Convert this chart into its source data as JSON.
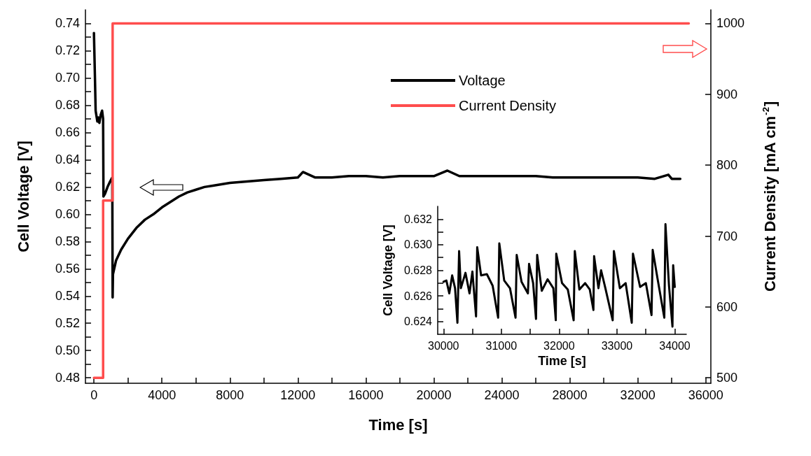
{
  "chart_data": [
    {
      "type": "line",
      "xlabel": "Time [s]",
      "ylabel": "Cell Voltage [V]",
      "y2label": "Current Density [mA cm$^{-2}$]",
      "xlim": [
        -500,
        36300
      ],
      "xticks": [
        0,
        {
          "value": 2000,
          "label": null
        },
        4000,
        {
          "value": 6000,
          "label": null
        },
        8000,
        {
          "value": 10000,
          "label": null
        },
        12000,
        {
          "value": 14000,
          "label": null
        },
        16000,
        {
          "value": 18000,
          "label": null
        },
        20000,
        {
          "value": 22000,
          "label": null
        },
        24000,
        {
          "value": 26000,
          "label": null
        },
        28000,
        {
          "value": 30000,
          "label": null
        },
        32000,
        {
          "value": 34000,
          "label": null
        },
        36000
      ],
      "ylim": [
        0.476,
        0.75
      ],
      "yticks": [
        {
          "value": 0.48,
          "label": "0.48"
        },
        {
          "value": 0.49,
          "label": null
        },
        {
          "value": 0.5,
          "label": "0.50"
        },
        {
          "value": 0.51,
          "label": null
        },
        {
          "value": 0.52,
          "label": "0.52"
        },
        {
          "value": 0.53,
          "label": null
        },
        {
          "value": 0.54,
          "label": "0.54"
        },
        {
          "value": 0.55,
          "label": null
        },
        {
          "value": 0.56,
          "label": "0.56"
        },
        {
          "value": 0.57,
          "label": null
        },
        {
          "value": 0.58,
          "label": "0.58"
        },
        {
          "value": 0.59,
          "label": null
        },
        {
          "value": 0.6,
          "label": "0.60"
        },
        {
          "value": 0.61,
          "label": null
        },
        {
          "value": 0.62,
          "label": "0.62"
        },
        {
          "value": 0.63,
          "label": null
        },
        {
          "value": 0.64,
          "label": "0.64"
        },
        {
          "value": 0.65,
          "label": null
        },
        {
          "value": 0.66,
          "label": "0.66"
        },
        {
          "value": 0.67,
          "label": null
        },
        {
          "value": 0.68,
          "label": "0.68"
        },
        {
          "value": 0.69,
          "label": null
        },
        {
          "value": 0.7,
          "label": "0.70"
        },
        {
          "value": 0.71,
          "label": null
        },
        {
          "value": 0.72,
          "label": "0.72"
        },
        {
          "value": 0.73,
          "label": null
        },
        {
          "value": 0.74,
          "label": "0.74"
        }
      ],
      "y2lim": [
        492.3,
        1019.2
      ],
      "y2ticks": [
        500,
        600,
        700,
        800,
        900,
        1000
      ],
      "legend": "top",
      "grid": false,
      "marker": "none",
      "line_style": "solid",
      "series": [
        {
          "name": "Voltage",
          "color": "#000000",
          "x": [
            0,
            60,
            100,
            150,
            200,
            260,
            320,
            400,
            480,
            540,
            560,
            650,
            800,
            950,
            1080,
            1100,
            1120,
            1300,
            1600,
            2000,
            2500,
            3000,
            3500,
            4000,
            4500,
            5000,
            5500,
            6000,
            6500,
            7000,
            7500,
            8000,
            9000,
            10000,
            11000,
            12000,
            12300,
            13000,
            14000,
            15000,
            16000,
            17000,
            18000,
            19000,
            20000,
            20800,
            21500,
            22000,
            23000,
            24000,
            25000,
            26000,
            27000,
            28000,
            29000,
            30000,
            31000,
            32000,
            33000,
            33800,
            34000,
            34500
          ],
          "values": [
            0.733,
            0.7,
            0.676,
            0.672,
            0.668,
            0.671,
            0.667,
            0.673,
            0.676,
            0.67,
            0.613,
            0.615,
            0.62,
            0.624,
            0.627,
            0.539,
            0.556,
            0.566,
            0.574,
            0.582,
            0.59,
            0.596,
            0.6,
            0.605,
            0.609,
            0.613,
            0.616,
            0.618,
            0.62,
            0.621,
            0.622,
            0.623,
            0.624,
            0.625,
            0.626,
            0.627,
            0.631,
            0.627,
            0.627,
            0.628,
            0.628,
            0.627,
            0.628,
            0.628,
            0.628,
            0.632,
            0.628,
            0.628,
            0.628,
            0.628,
            0.628,
            0.628,
            0.627,
            0.627,
            0.627,
            0.627,
            0.627,
            0.627,
            0.626,
            0.629,
            0.626,
            0.626
          ]
        },
        {
          "name": "Current Density",
          "color": "#ff4d4d",
          "axis": "y2",
          "x": [
            0,
            540,
            540,
            1100,
            1100,
            35000
          ],
          "values": [
            500,
            500,
            750,
            750,
            1000,
            1000
          ]
        }
      ]
    },
    {
      "type": "line",
      "xlabel": "Time [s]",
      "ylabel": "Cell Voltage [V]",
      "xlim": [
        29900,
        34200
      ],
      "xticks": [
        30000,
        {
          "value": 30500,
          "label": null
        },
        31000,
        {
          "value": 31500,
          "label": null
        },
        32000,
        {
          "value": 32500,
          "label": null
        },
        33000,
        {
          "value": 33500,
          "label": null
        },
        34000
      ],
      "ylim": [
        0.623,
        0.633
      ],
      "yticks": [
        {
          "value": 0.624,
          "label": "0.624"
        },
        {
          "value": 0.625,
          "label": null
        },
        {
          "value": 0.626,
          "label": "0.626"
        },
        {
          "value": 0.627,
          "label": null
        },
        {
          "value": 0.628,
          "label": "0.628"
        },
        {
          "value": 0.629,
          "label": null
        },
        {
          "value": 0.63,
          "label": "0.630"
        },
        {
          "value": 0.631,
          "label": null
        },
        {
          "value": 0.632,
          "label": "0.632"
        }
      ],
      "grid": false,
      "marker": "none",
      "line_style": "solid",
      "series": [
        {
          "color": "#000000",
          "x": [
            30000,
            30050,
            30100,
            30150,
            30200,
            30241,
            30270,
            30300,
            30380,
            30450,
            30500,
            30563,
            30583,
            30650,
            30750,
            30850,
            30945,
            30965,
            31050,
            31150,
            31246,
            31266,
            31350,
            31460,
            31480,
            31550,
            31600,
            31620,
            31700,
            31800,
            31900,
            31942,
            31950,
            32050,
            32150,
            32251,
            32271,
            32350,
            32450,
            32530,
            32593,
            32605,
            32680,
            32726,
            32800,
            32926,
            32947,
            33050,
            33150,
            33256,
            33277,
            33400,
            33500,
            33598,
            33618,
            33700,
            33819,
            33839,
            33900,
            33960,
            33972,
            34000
          ],
          "values": [
            0.6271,
            0.6272,
            0.6262,
            0.6276,
            0.6266,
            0.6239,
            0.6295,
            0.6266,
            0.6278,
            0.6262,
            0.6279,
            0.6244,
            0.6298,
            0.6276,
            0.6277,
            0.6268,
            0.6243,
            0.6301,
            0.6272,
            0.6266,
            0.6243,
            0.6292,
            0.6271,
            0.6262,
            0.6285,
            0.627,
            0.6242,
            0.6292,
            0.6264,
            0.6273,
            0.6266,
            0.6241,
            0.6293,
            0.627,
            0.6265,
            0.6241,
            0.6295,
            0.6265,
            0.627,
            0.6265,
            0.6249,
            0.6291,
            0.6266,
            0.628,
            0.6266,
            0.6241,
            0.6295,
            0.6266,
            0.627,
            0.6239,
            0.6293,
            0.6267,
            0.627,
            0.6245,
            0.6296,
            0.6274,
            0.6243,
            0.6316,
            0.6268,
            0.6236,
            0.6284,
            0.6267
          ]
        }
      ]
    }
  ]
}
